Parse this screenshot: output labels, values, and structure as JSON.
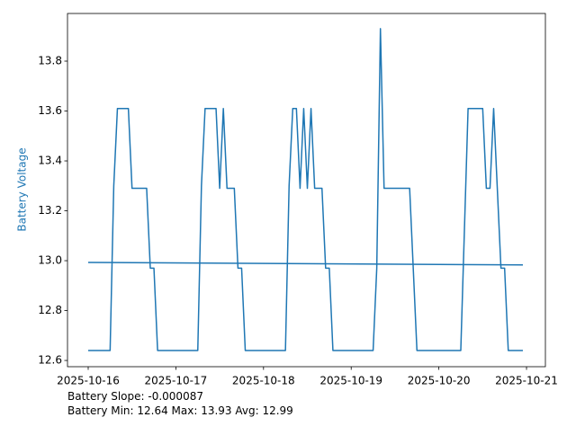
{
  "chart_data": {
    "type": "line",
    "ylabel": "Battery Voltage",
    "ylabel_color": "#1f77b4",
    "annotations": [
      "Battery Slope: -0.000087",
      "Battery Min: 12.64 Max: 13.93 Avg: 12.99"
    ],
    "xlim": [
      "2025-10-15T18:20",
      "2025-10-21T05:10"
    ],
    "ylim": [
      12.575,
      13.991
    ],
    "xticks": [
      "2025-10-16",
      "2025-10-17",
      "2025-10-18",
      "2025-10-19",
      "2025-10-20",
      "2025-10-21"
    ],
    "yticks": [
      {
        "value": 12.6,
        "label": "12.6"
      },
      {
        "value": 12.8,
        "label": "12.8"
      },
      {
        "value": 13.0,
        "label": "13.0"
      },
      {
        "value": 13.2,
        "label": "13.2"
      },
      {
        "value": 13.4,
        "label": "13.4"
      },
      {
        "value": 13.6,
        "label": "13.6"
      },
      {
        "value": 13.8,
        "label": "13.8"
      }
    ],
    "series": [
      {
        "color": "#1f77b4",
        "x": [
          "2025-10-16T00:00",
          "2025-10-16T06:00",
          "2025-10-16T07:00",
          "2025-10-16T08:00",
          "2025-10-16T11:00",
          "2025-10-16T12:00",
          "2025-10-16T16:00",
          "2025-10-16T17:00",
          "2025-10-16T18:00",
          "2025-10-16T19:00",
          "2025-10-17T06:00",
          "2025-10-17T07:00",
          "2025-10-17T08:00",
          "2025-10-17T11:00",
          "2025-10-17T12:00",
          "2025-10-17T13:00",
          "2025-10-17T14:00",
          "2025-10-17T16:00",
          "2025-10-17T17:00",
          "2025-10-17T18:00",
          "2025-10-17T19:00",
          "2025-10-18T06:00",
          "2025-10-18T07:00",
          "2025-10-18T08:00",
          "2025-10-18T09:00",
          "2025-10-18T10:00",
          "2025-10-18T11:00",
          "2025-10-18T12:00",
          "2025-10-18T13:00",
          "2025-10-18T14:00",
          "2025-10-18T16:00",
          "2025-10-18T17:00",
          "2025-10-18T18:00",
          "2025-10-18T19:00",
          "2025-10-19T06:00",
          "2025-10-19T07:00",
          "2025-10-19T08:00",
          "2025-10-19T09:00",
          "2025-10-19T16:00",
          "2025-10-19T18:00",
          "2025-10-20T06:00",
          "2025-10-20T08:00",
          "2025-10-20T12:00",
          "2025-10-20T13:00",
          "2025-10-20T14:00",
          "2025-10-20T15:00",
          "2025-10-20T17:00",
          "2025-10-20T18:00",
          "2025-10-20T19:00",
          "2025-10-20T23:00"
        ],
        "values": [
          12.64,
          12.64,
          13.3,
          13.61,
          13.61,
          13.29,
          13.29,
          12.97,
          12.97,
          12.64,
          12.64,
          13.3,
          13.61,
          13.61,
          13.29,
          13.61,
          13.29,
          13.29,
          12.97,
          12.97,
          12.64,
          12.64,
          13.3,
          13.61,
          13.61,
          13.29,
          13.61,
          13.29,
          13.61,
          13.29,
          13.29,
          12.97,
          12.97,
          12.64,
          12.64,
          12.97,
          13.93,
          13.29,
          13.29,
          12.64,
          12.64,
          13.61,
          13.61,
          13.29,
          13.29,
          13.61,
          12.97,
          12.97,
          12.64,
          12.64
        ]
      },
      {
        "color": "#1f77b4",
        "x": [
          "2025-10-16T00:00",
          "2025-10-20T23:00"
        ],
        "values": [
          12.993,
          12.983
        ]
      }
    ]
  }
}
